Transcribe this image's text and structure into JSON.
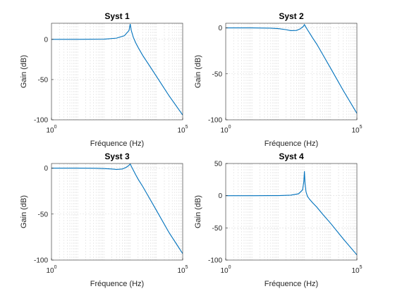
{
  "chart_data": [
    {
      "type": "line",
      "title": "Syst 1",
      "xlabel": "Fréquence (Hz)",
      "ylabel": "Gain (dB)",
      "xscale": "log",
      "xlim": [
        1,
        100000
      ],
      "ylim": [
        -100,
        20
      ],
      "xticks": [
        {
          "value": 1,
          "base": "10",
          "exp": "0"
        },
        {
          "value": 100000,
          "base": "10",
          "exp": "5"
        }
      ],
      "yticks": [
        0,
        -50,
        -100
      ],
      "grid": true,
      "series": [
        {
          "color": "#0072bd",
          "x": [
            1,
            10,
            100,
            300,
            600,
            900,
            1000,
            1100,
            1300,
            1600,
            2000,
            3000,
            5000,
            10000,
            30000,
            100000
          ],
          "y": [
            0,
            0,
            0.2,
            1.5,
            4.5,
            11,
            19,
            11,
            3,
            -4,
            -10,
            -20,
            -31,
            -46,
            -70,
            -94
          ]
        }
      ]
    },
    {
      "type": "line",
      "title": "Syst 2",
      "xlabel": "Fréquence (Hz)",
      "ylabel": "Gain (dB)",
      "xscale": "log",
      "xlim": [
        1,
        100000
      ],
      "ylim": [
        -100,
        5
      ],
      "xticks": [
        {
          "value": 1,
          "base": "10",
          "exp": "0"
        },
        {
          "value": 100000,
          "base": "10",
          "exp": "5"
        }
      ],
      "yticks": [
        0,
        -50,
        -100
      ],
      "grid": true,
      "series": [
        {
          "color": "#0072bd",
          "x": [
            1,
            10,
            50,
            100,
            200,
            300,
            500,
            700,
            900,
            1000,
            1100,
            1300,
            1600,
            2000,
            3000,
            5000,
            10000,
            30000,
            100000
          ],
          "y": [
            0,
            0,
            -0.3,
            -0.8,
            -2,
            -3,
            -2.8,
            -1,
            1.5,
            3.5,
            1.5,
            -2,
            -6,
            -10.5,
            -18,
            -29,
            -44,
            -68,
            -93
          ]
        }
      ]
    },
    {
      "type": "line",
      "title": "Syst 3",
      "xlabel": "Fréquence (Hz)",
      "ylabel": "Gain (dB)",
      "xscale": "log",
      "xlim": [
        1,
        100000
      ],
      "ylim": [
        -100,
        5
      ],
      "xticks": [
        {
          "value": 1,
          "base": "10",
          "exp": "0"
        },
        {
          "value": 100000,
          "base": "10",
          "exp": "5"
        }
      ],
      "yticks": [
        0,
        -50,
        -100
      ],
      "grid": true,
      "series": [
        {
          "color": "#0072bd",
          "x": [
            1,
            10,
            50,
            100,
            200,
            300,
            500,
            700,
            900,
            1000,
            1100,
            1300,
            1600,
            2000,
            3000,
            5000,
            10000,
            30000,
            100000
          ],
          "y": [
            0,
            0,
            -0.2,
            -0.5,
            -1,
            -1.5,
            -1,
            0.8,
            3,
            4.5,
            2,
            -2,
            -7,
            -12,
            -20,
            -31,
            -46,
            -70,
            -93
          ]
        }
      ]
    },
    {
      "type": "line",
      "title": "Syst 4",
      "xlabel": "Fréquence (Hz)",
      "ylabel": "Gain (dB)",
      "xscale": "log",
      "xlim": [
        1,
        100000
      ],
      "ylim": [
        -100,
        50
      ],
      "xticks": [
        {
          "value": 1,
          "base": "10",
          "exp": "0"
        },
        {
          "value": 100000,
          "base": "10",
          "exp": "5"
        }
      ],
      "yticks": [
        50,
        0,
        -50,
        -100
      ],
      "grid": true,
      "series": [
        {
          "color": "#0072bd",
          "x": [
            1,
            10,
            100,
            300,
            600,
            850,
            950,
            1000,
            1050,
            1150,
            1300,
            1600,
            2000,
            3000,
            5000,
            10000,
            30000,
            100000
          ],
          "y": [
            0,
            0,
            0.1,
            0.8,
            3,
            9,
            22,
            38,
            20,
            6,
            -1,
            -6,
            -10.5,
            -18,
            -29,
            -43,
            -67,
            -92
          ]
        }
      ]
    }
  ]
}
